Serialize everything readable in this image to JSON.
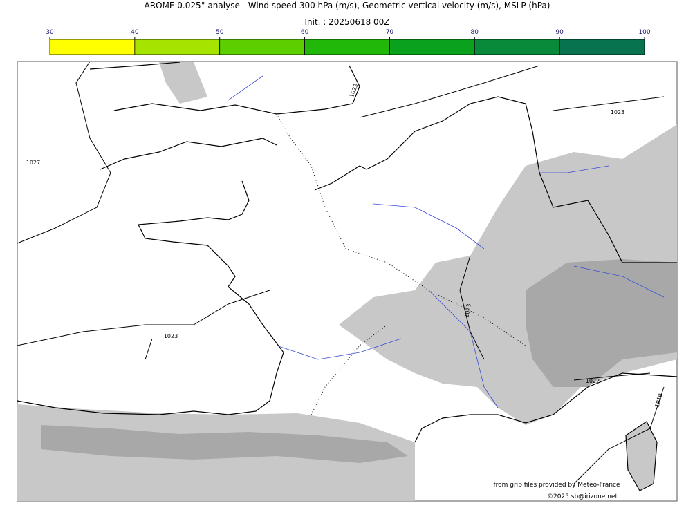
{
  "title": "AROME 0.025° analyse - Wind speed 300 hPa (m/s), Geometric vertical velocity (m/s), MSLP (hPa)",
  "subtitle": "Init. : 20250618 00Z",
  "colorbar": {
    "ticks": [
      30,
      40,
      50,
      60,
      70,
      80,
      90,
      100
    ],
    "colors": [
      "#ffff00",
      "#a6e400",
      "#5ccf00",
      "#22b80a",
      "#0aa21c",
      "#078a3a",
      "#08744f"
    ]
  },
  "isobar_labels": [
    "1027",
    "1023",
    "1023",
    "1023",
    "1022",
    "1019",
    "1023"
  ],
  "credits": [
    "from grib files provided by Meteo-France",
    "©2025 sb@irizone.net"
  ]
}
